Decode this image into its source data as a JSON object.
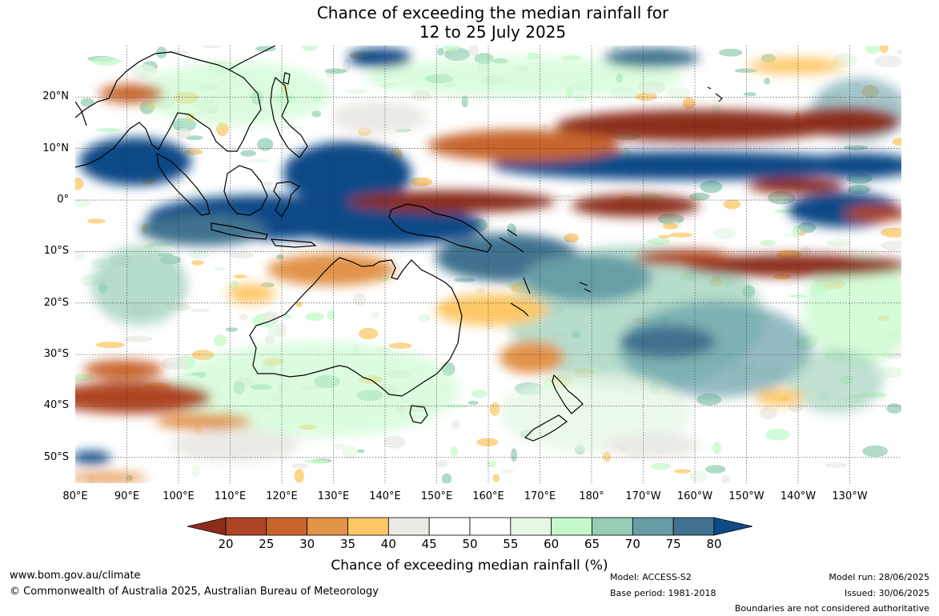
{
  "title": {
    "line1": "Chance of exceeding the median rainfall for",
    "line2": "12 to 25 July 2025"
  },
  "map": {
    "latitude_labels": [
      "20°N",
      "10°N",
      "0°",
      "10°S",
      "20°S",
      "30°S",
      "40°S",
      "50°S"
    ],
    "longitude_labels": [
      "80°E",
      "90°E",
      "100°E",
      "110°E",
      "120°E",
      "130°E",
      "140°E",
      "150°E",
      "160°E",
      "170°E",
      "180°",
      "170°W",
      "160°W",
      "150°W",
      "140°W",
      "130°W"
    ],
    "longitude_extent": [
      80,
      240
    ],
    "latitude_extent": [
      -55,
      30
    ],
    "grid": true
  },
  "colorbar": {
    "label": "Chance of exceeding median rainfall (%)",
    "ticks": [
      "20",
      "25",
      "30",
      "35",
      "40",
      "45",
      "50",
      "55",
      "60",
      "65",
      "70",
      "75",
      "80"
    ],
    "colors": [
      "#8c2d1b",
      "#ad4424",
      "#c8652f",
      "#e29348",
      "#fdc766",
      "#ebe9e4",
      "#ffffff",
      "#ffffff",
      "#e6f7e6",
      "#c4fac9",
      "#97cdb5",
      "#679ea6",
      "#41728f",
      "#0f4a87"
    ]
  },
  "footer": {
    "website": "www.bom.gov.au/climate",
    "copyright": "© Commonwealth of Australia 2025, Australian Bureau of Meteorology",
    "model": "Model: ACCESS-S2",
    "base_period": "Base period: 1981-2018",
    "model_run": "Model run: 28/06/2025",
    "issued": "Issued: 30/06/2025",
    "disclaimer": "Boundaries are not considered authoritative"
  }
}
